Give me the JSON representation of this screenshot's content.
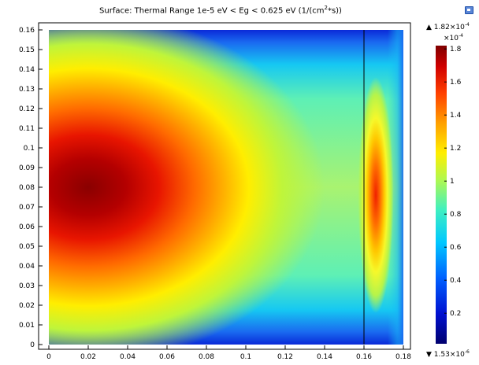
{
  "title": "Surface: Thermal Range 1e-5 eV < Eg < 0.625 eV (1/(cm",
  "title_sup": "2",
  "title_end": "*s))",
  "corner_icon": "window-icon",
  "colorbar": {
    "max_label": "1.82×10",
    "max_exp": "-4",
    "scale_label": "×10",
    "scale_exp": "-4",
    "min_label": "1.53×10",
    "min_exp": "-6",
    "ticks": [
      "1.8",
      "1.6",
      "1.4",
      "1.2",
      "1",
      "0.8",
      "0.6",
      "0.4",
      "0.2"
    ],
    "tick_values": [
      1.8,
      1.6,
      1.4,
      1.2,
      1.0,
      0.8,
      0.6,
      0.4,
      0.2
    ],
    "range": [
      0.0153,
      1.82
    ],
    "colormap": "rainbow",
    "up_arrow": "▲",
    "down_arrow": "▼"
  },
  "chart_data": {
    "type": "heatmap",
    "title": "Surface: Thermal Range 1e-5 eV < Eg < 0.625 eV (1/(cm^2*s))",
    "xlabel": "",
    "ylabel": "",
    "xlim": [
      0,
      0.18
    ],
    "ylim": [
      0,
      0.16
    ],
    "domain_x": [
      0,
      0.18
    ],
    "domain_y": [
      0,
      0.16
    ],
    "divider_x": 0.16,
    "xticks": [
      "0",
      "0.02",
      "0.04",
      "0.06",
      "0.08",
      "0.1",
      "0.12",
      "0.14",
      "0.16",
      "0.18"
    ],
    "xtick_values": [
      0,
      0.02,
      0.04,
      0.06,
      0.08,
      0.1,
      0.12,
      0.14,
      0.16,
      0.18
    ],
    "yticks": [
      "0",
      "0.01",
      "0.02",
      "0.03",
      "0.04",
      "0.05",
      "0.06",
      "0.07",
      "0.08",
      "0.09",
      "0.1",
      "0.11",
      "0.12",
      "0.13",
      "0.14",
      "0.15",
      "0.16"
    ],
    "ytick_values": [
      0,
      0.01,
      0.02,
      0.03,
      0.04,
      0.05,
      0.06,
      0.07,
      0.08,
      0.09,
      0.1,
      0.11,
      0.12,
      0.13,
      0.14,
      0.15,
      0.16
    ],
    "value_min": 1.53e-06,
    "value_max": 0.000182,
    "hotspots": [
      {
        "x": 0.02,
        "y": 0.08,
        "value": 0.000182
      },
      {
        "x": 0.166,
        "y": 0.076,
        "value": 0.000145
      }
    ],
    "grid": false
  }
}
